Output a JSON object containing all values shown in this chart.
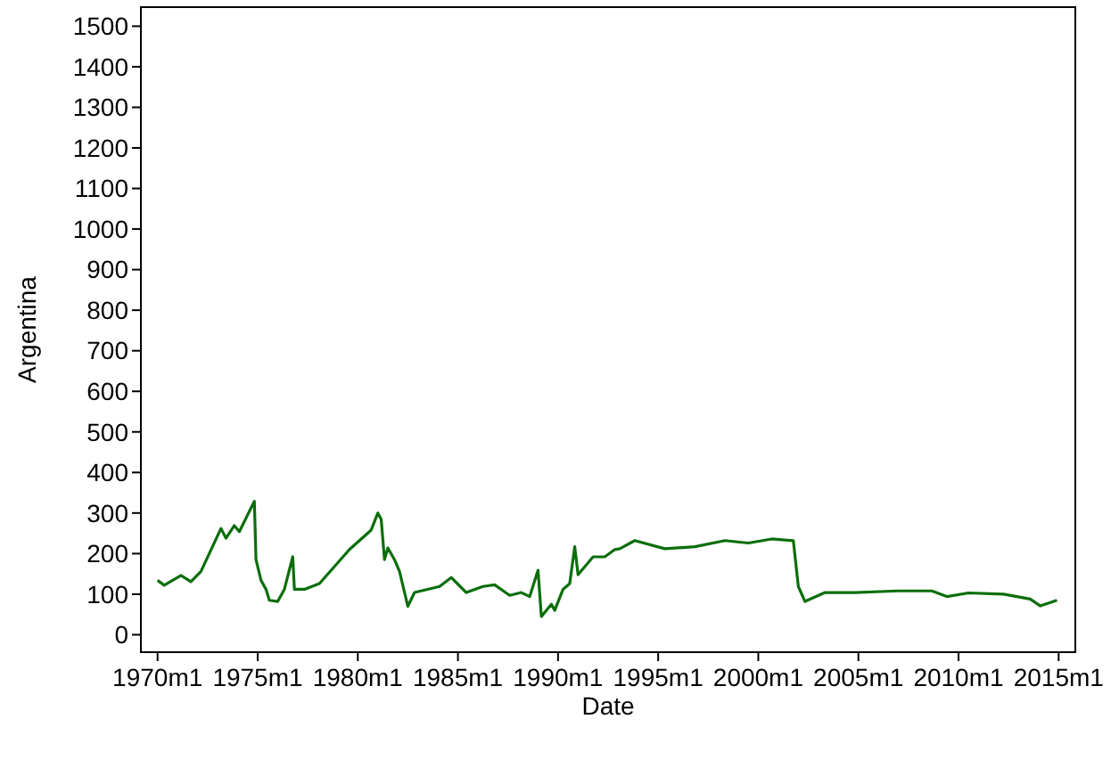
{
  "chart_data": {
    "type": "line",
    "xlabel": "Date",
    "ylabel": "Argentina",
    "xlim": [
      "1969-03",
      "2015-11"
    ],
    "ylim": [
      -43,
      1547
    ],
    "xticks": [
      {
        "value": "1970-01",
        "label": "1970m1"
      },
      {
        "value": "1975-01",
        "label": "1975m1"
      },
      {
        "value": "1980-01",
        "label": "1980m1"
      },
      {
        "value": "1985-01",
        "label": "1985m1"
      },
      {
        "value": "1990-01",
        "label": "1990m1"
      },
      {
        "value": "1995-01",
        "label": "1995m1"
      },
      {
        "value": "2000-01",
        "label": "2000m1"
      },
      {
        "value": "2005-01",
        "label": "2005m1"
      },
      {
        "value": "2010-01",
        "label": "2010m1"
      },
      {
        "value": "2015-01",
        "label": "2015m1"
      }
    ],
    "yticks": [
      0,
      100,
      200,
      300,
      400,
      500,
      600,
      700,
      800,
      900,
      1000,
      1100,
      1200,
      1300,
      1400,
      1500
    ],
    "grid": false,
    "marker": "none",
    "line_style": "solid",
    "x": [
      "1970-01",
      "1970-05",
      "1971-03",
      "1971-09",
      "1972-03",
      "1973-03",
      "1973-06",
      "1973-11",
      "1974-02",
      "1974-11",
      "1974-12",
      "1975-03",
      "1975-06",
      "1975-08",
      "1976-01",
      "1976-05",
      "1976-10",
      "1976-11",
      "1977-05",
      "1978-02",
      "1979-08",
      "1980-09",
      "1981-01",
      "1981-03",
      "1981-05",
      "1981-07",
      "1981-11",
      "1982-02",
      "1982-07",
      "1982-11",
      "1984-02",
      "1984-09",
      "1985-06",
      "1986-04",
      "1986-11",
      "1987-08",
      "1988-03",
      "1988-08",
      "1989-01",
      "1989-03",
      "1989-09",
      "1989-11",
      "1990-04",
      "1990-08",
      "1990-11",
      "1991-01",
      "1991-10",
      "1992-05",
      "1992-11",
      "1993-02",
      "1993-11",
      "1995-05",
      "1996-11",
      "1998-05",
      "1999-07",
      "2000-09",
      "2001-10",
      "2002-01",
      "2002-05",
      "2003-05",
      "2004-11",
      "2006-12",
      "2008-09",
      "2009-06",
      "2010-07",
      "2012-04",
      "2013-08",
      "2014-02",
      "2014-12"
    ],
    "series": [
      {
        "color": "#0b6e0b",
        "values": [
          134,
          122,
          146,
          131,
          156,
          262,
          238,
          269,
          254,
          329,
          185,
          134,
          112,
          85,
          82,
          112,
          192,
          112,
          112,
          126,
          210,
          258,
          300,
          285,
          185,
          214,
          185,
          156,
          70,
          104,
          119,
          141,
          104,
          119,
          123,
          97,
          104,
          94,
          159,
          45,
          75,
          60,
          112,
          126,
          217,
          148,
          192,
          192,
          210,
          212,
          232,
          212,
          217,
          232,
          226,
          236,
          232,
          119,
          82,
          104,
          104,
          108,
          108,
          94,
          103,
          100,
          88,
          71,
          85
        ]
      }
    ]
  }
}
